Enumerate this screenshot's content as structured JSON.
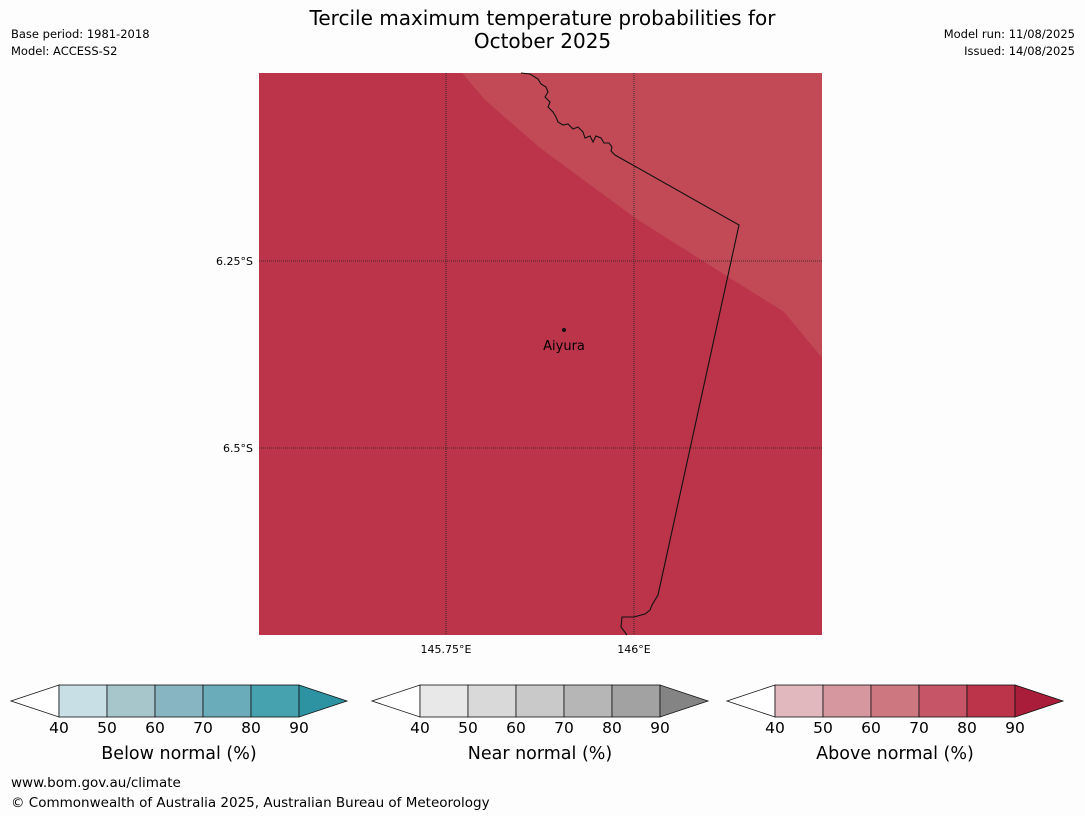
{
  "title_line1": "Tercile maximum temperature probabilities for",
  "title_line2": "October 2025",
  "meta_left": [
    "Base period: 1981-2018",
    "Model: ACCESS-S2"
  ],
  "meta_right": [
    "Model run: 11/08/2025",
    "Issued: 14/08/2025"
  ],
  "map": {
    "lat_labels": [
      "6.25°S",
      "6.5°S"
    ],
    "lon_labels": [
      "145.75°E",
      "146°E"
    ],
    "place_label": "Aiyura",
    "fill_colors": {
      "dominant": "#bb344a",
      "secondary": "#c14a56"
    }
  },
  "colorbars": [
    {
      "title": "Below normal (%)",
      "ticks": [
        "40",
        "50",
        "60",
        "70",
        "80",
        "90"
      ],
      "colors": [
        "#c8e0e5",
        "#a7c6cc",
        "#88b5c2",
        "#6aacba",
        "#47a2b0",
        "#2d93a3"
      ]
    },
    {
      "title": "Near normal (%)",
      "ticks": [
        "40",
        "50",
        "60",
        "70",
        "80",
        "90"
      ],
      "colors": [
        "#e8e8e8",
        "#d9d9d9",
        "#c9c9c9",
        "#b6b6b6",
        "#a2a2a2",
        "#848484"
      ]
    },
    {
      "title": "Above normal (%)",
      "ticks": [
        "40",
        "50",
        "60",
        "70",
        "80",
        "90"
      ],
      "colors": [
        "#e1b8bd",
        "#d7979f",
        "#cd7880",
        "#c65667",
        "#bc344a",
        "#a91d3b"
      ]
    }
  ],
  "footer": [
    "www.bom.gov.au/climate",
    "© Commonwealth of Australia 2025, Australian Bureau of Meteorology"
  ]
}
